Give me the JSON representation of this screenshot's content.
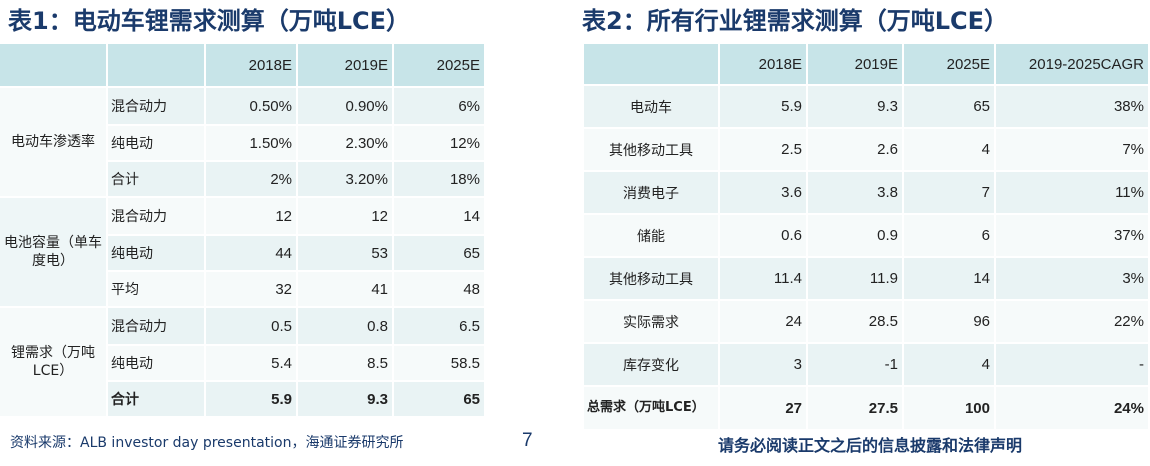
{
  "table1": {
    "title": "表1：电动车锂需求测算（万吨LCE）",
    "header": [
      "",
      "",
      "2018E",
      "2019E",
      "2025E"
    ],
    "groups": [
      {
        "category": "电动车渗透率",
        "rows": [
          {
            "label": "混合动力",
            "values": [
              "0.50%",
              "0.90%",
              "6%"
            ]
          },
          {
            "label": "纯电动",
            "values": [
              "1.50%",
              "2.30%",
              "12%"
            ]
          },
          {
            "label": "合计",
            "values": [
              "2%",
              "3.20%",
              "18%"
            ]
          }
        ]
      },
      {
        "category": "电池容量（单车度电）",
        "rows": [
          {
            "label": "混合动力",
            "values": [
              "12",
              "12",
              "14"
            ]
          },
          {
            "label": "纯电动",
            "values": [
              "44",
              "53",
              "65"
            ]
          },
          {
            "label": "平均",
            "values": [
              "32",
              "41",
              "48"
            ]
          }
        ]
      },
      {
        "category": "锂需求（万吨LCE）",
        "rows": [
          {
            "label": "混合动力",
            "values": [
              "0.5",
              "0.8",
              "6.5"
            ]
          },
          {
            "label": "纯电动",
            "values": [
              "5.4",
              "8.5",
              "58.5"
            ]
          },
          {
            "label": "合计",
            "values": [
              "5.9",
              "9.3",
              "65"
            ]
          }
        ]
      }
    ]
  },
  "table2": {
    "title": "表2：所有行业锂需求测算（万吨LCE）",
    "header": [
      "",
      "2018E",
      "2019E",
      "2025E",
      "2019-2025CAGR"
    ],
    "rows": [
      {
        "label": "电动车",
        "values": [
          "5.9",
          "9.3",
          "65",
          "38%"
        ]
      },
      {
        "label": "其他移动工具",
        "values": [
          "2.5",
          "2.6",
          "4",
          "7%"
        ]
      },
      {
        "label": "消费电子",
        "values": [
          "3.6",
          "3.8",
          "7",
          "11%"
        ]
      },
      {
        "label": "储能",
        "values": [
          "0.6",
          "0.9",
          "6",
          "37%"
        ]
      },
      {
        "label": "其他移动工具",
        "values": [
          "11.4",
          "11.9",
          "14",
          "3%"
        ]
      },
      {
        "label": "实际需求",
        "values": [
          "24",
          "28.5",
          "96",
          "22%"
        ]
      },
      {
        "label": "库存变化",
        "values": [
          "3",
          "-1",
          "4",
          "-"
        ]
      },
      {
        "label": "总需求（万吨LCE）",
        "values": [
          "27",
          "27.5",
          "100",
          "24%"
        ]
      }
    ]
  },
  "footer": {
    "source": "资料来源：ALB investor day presentation，海通证券研究所",
    "page": "7",
    "disclaimer": "请务必阅读正文之后的信息披露和法律声明"
  }
}
